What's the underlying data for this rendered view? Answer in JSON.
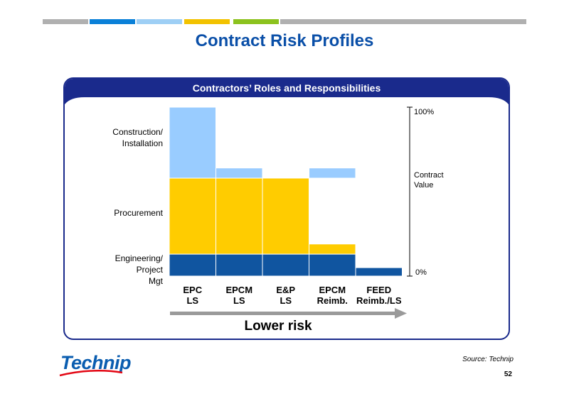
{
  "top_bar_colors": [
    "#b0b0b0",
    "#0a80d8",
    "#9ecff5",
    "#f2c200",
    "#8cc21e",
    "#b0b0b0"
  ],
  "title": "Contract Risk Profiles",
  "title_color": "#0a4fa8",
  "panel": {
    "header": "Contractors’ Roles and Responsibilities",
    "header_color": "#1a2a8c"
  },
  "chart_data": {
    "type": "bar",
    "stacked": true,
    "categories": [
      "EPC\nLS",
      "EPCM\nLS",
      "E&P\nLS",
      "EPCM\nReimb.",
      "FEED\nReimb./LS"
    ],
    "series": [
      {
        "name": "Engineering/ Project Mgt",
        "color": "#1055a0",
        "values": [
          13,
          13,
          13,
          13,
          5
        ]
      },
      {
        "name": "Procurement",
        "color": "#ffcc00",
        "values": [
          45,
          45,
          45,
          6,
          0
        ]
      },
      {
        "name": "Construction/ Installation",
        "color": "#99ccff",
        "values": [
          42,
          6,
          0,
          6,
          0
        ],
        "offsets": [
          0,
          0,
          0,
          39,
          0
        ]
      }
    ],
    "axis_labels": {
      "top": "100%",
      "bottom": "0%",
      "middle": "Contract Value"
    },
    "ylim": [
      0,
      100
    ],
    "arrow_label": "Lower risk"
  },
  "footer": {
    "logo": "Technip",
    "logo_color": "#0a5db0",
    "source": "Source:  Technip",
    "page": "52"
  }
}
